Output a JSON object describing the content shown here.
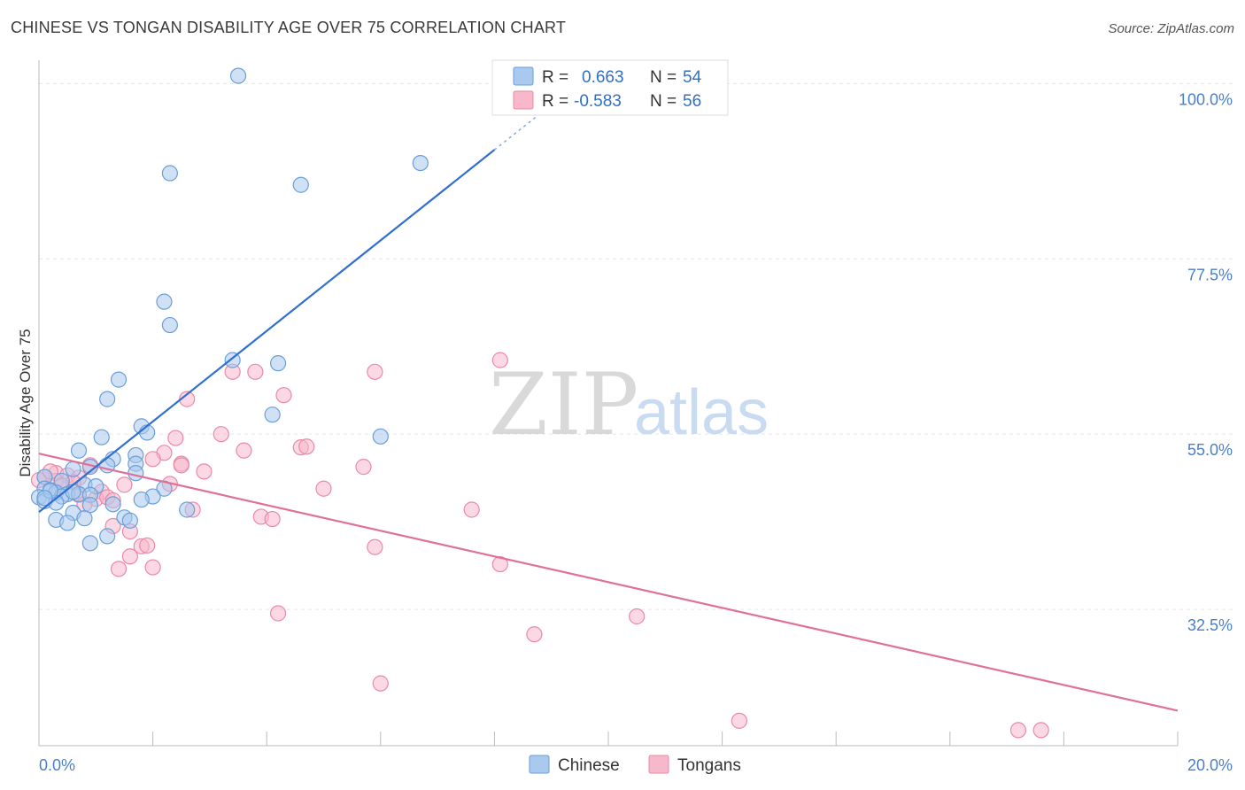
{
  "title": "CHINESE VS TONGAN DISABILITY AGE OVER 75 CORRELATION CHART",
  "source": "Source: ZipAtlas.com",
  "watermark": {
    "part1": "ZIP",
    "part2": "atlas"
  },
  "legend_top": [
    {
      "r_label": "R =",
      "r_value": "0.663",
      "n_label": "N =",
      "n_value": "54"
    },
    {
      "r_label": "R =",
      "r_value": "-0.583",
      "n_label": "N =",
      "n_value": "56"
    }
  ],
  "legend_bottom": [
    "Chinese",
    "Tongans"
  ],
  "colors": {
    "chinese_fill": "#a9c9ee",
    "chinese_stroke": "#6a9fd8",
    "chinese_line": "#2f6fd0",
    "tongan_fill": "#f7b8cc",
    "tongan_stroke": "#e98aa8",
    "tongan_line": "#e0709a",
    "tick_text": "#4a7fc8",
    "grid": "#e6e6e6"
  },
  "chart_data": {
    "type": "scatter",
    "title": "CHINESE VS TONGAN DISABILITY AGE OVER 75 CORRELATION CHART",
    "xlabel": "",
    "ylabel": "Disability Age Over 75",
    "xlim": [
      0,
      20
    ],
    "ylim": [
      15,
      103
    ],
    "x_tick_labels": [
      "0.0%",
      "20.0%"
    ],
    "y_ticks": [
      32.5,
      55.0,
      77.5,
      100.0
    ],
    "y_tick_labels": [
      "32.5%",
      "55.0%",
      "77.5%",
      "100.0%"
    ],
    "grid": true,
    "legend_position": "top-center",
    "series": [
      {
        "name": "Chinese",
        "r": 0.663,
        "n": 54,
        "trend": {
          "x": [
            0.0,
            8.0
          ],
          "y": [
            45.0,
            91.5
          ]
        },
        "trend_dashed": {
          "x": [
            8.0,
            8.9
          ],
          "y": [
            91.5,
            96.7
          ]
        },
        "points": [
          [
            3.5,
            101.0
          ],
          [
            2.3,
            88.5
          ],
          [
            4.6,
            87.0
          ],
          [
            6.7,
            89.8
          ],
          [
            2.2,
            72.0
          ],
          [
            2.3,
            69.0
          ],
          [
            3.4,
            64.5
          ],
          [
            4.2,
            64.1
          ],
          [
            1.4,
            62.0
          ],
          [
            1.2,
            59.5
          ],
          [
            4.1,
            57.5
          ],
          [
            6.0,
            54.7
          ],
          [
            1.8,
            56.0
          ],
          [
            1.9,
            55.2
          ],
          [
            1.1,
            54.6
          ],
          [
            0.7,
            52.9
          ],
          [
            1.7,
            52.3
          ],
          [
            1.7,
            51.2
          ],
          [
            1.3,
            51.8
          ],
          [
            1.2,
            51.0
          ],
          [
            0.6,
            50.5
          ],
          [
            0.9,
            50.8
          ],
          [
            1.7,
            50.0
          ],
          [
            0.1,
            49.5
          ],
          [
            0.4,
            49.0
          ],
          [
            0.8,
            48.5
          ],
          [
            1.0,
            48.3
          ],
          [
            2.2,
            48.0
          ],
          [
            0.1,
            48.0
          ],
          [
            0.2,
            47.8
          ],
          [
            0.3,
            47.5
          ],
          [
            0.5,
            47.3
          ],
          [
            0.7,
            47.3
          ],
          [
            0.0,
            46.9
          ],
          [
            0.4,
            47.0
          ],
          [
            0.9,
            47.2
          ],
          [
            2.0,
            47.0
          ],
          [
            1.8,
            46.6
          ],
          [
            0.1,
            46.4
          ],
          [
            0.3,
            46.2
          ],
          [
            0.9,
            45.9
          ],
          [
            1.3,
            46.0
          ],
          [
            0.6,
            44.9
          ],
          [
            2.6,
            45.3
          ],
          [
            1.5,
            44.3
          ],
          [
            0.3,
            44.0
          ],
          [
            1.6,
            43.9
          ],
          [
            0.8,
            44.2
          ],
          [
            0.5,
            43.6
          ],
          [
            1.2,
            41.9
          ],
          [
            0.9,
            41.0
          ],
          [
            0.2,
            47.7
          ],
          [
            0.6,
            47.6
          ],
          [
            0.1,
            46.8
          ]
        ]
      },
      {
        "name": "Tongans",
        "r": -0.583,
        "n": 56,
        "trend": {
          "x": [
            0.0,
            20.0
          ],
          "y": [
            52.5,
            19.5
          ]
        },
        "points": [
          [
            8.1,
            64.5
          ],
          [
            3.4,
            63.0
          ],
          [
            3.8,
            63.0
          ],
          [
            5.9,
            63.0
          ],
          [
            4.3,
            60.0
          ],
          [
            2.6,
            59.5
          ],
          [
            3.2,
            55.0
          ],
          [
            2.4,
            54.5
          ],
          [
            4.6,
            53.3
          ],
          [
            4.7,
            53.4
          ],
          [
            3.6,
            52.9
          ],
          [
            2.2,
            52.6
          ],
          [
            2.0,
            51.8
          ],
          [
            2.5,
            51.2
          ],
          [
            2.5,
            51.0
          ],
          [
            0.9,
            51.0
          ],
          [
            5.7,
            50.8
          ],
          [
            2.9,
            50.2
          ],
          [
            0.3,
            50.0
          ],
          [
            0.5,
            49.7
          ],
          [
            0.1,
            49.5
          ],
          [
            0.7,
            49.4
          ],
          [
            0.3,
            49.0
          ],
          [
            0.0,
            49.1
          ],
          [
            1.5,
            48.5
          ],
          [
            2.3,
            48.6
          ],
          [
            5.0,
            48.0
          ],
          [
            1.1,
            47.6
          ],
          [
            0.7,
            47.2
          ],
          [
            1.0,
            46.7
          ],
          [
            1.2,
            46.9
          ],
          [
            0.8,
            46.0
          ],
          [
            2.7,
            45.3
          ],
          [
            7.6,
            45.3
          ],
          [
            3.9,
            44.4
          ],
          [
            4.1,
            44.1
          ],
          [
            1.3,
            43.2
          ],
          [
            1.6,
            42.5
          ],
          [
            1.8,
            40.6
          ],
          [
            1.9,
            40.7
          ],
          [
            5.9,
            40.5
          ],
          [
            1.6,
            39.3
          ],
          [
            8.1,
            38.3
          ],
          [
            1.4,
            37.7
          ],
          [
            2.0,
            37.9
          ],
          [
            4.2,
            32.0
          ],
          [
            10.5,
            31.6
          ],
          [
            8.7,
            29.3
          ],
          [
            6.0,
            23.0
          ],
          [
            12.3,
            18.2
          ],
          [
            17.2,
            17.0
          ],
          [
            17.6,
            17.0
          ],
          [
            0.2,
            50.2
          ],
          [
            0.6,
            48.8
          ],
          [
            1.3,
            46.5
          ],
          [
            0.4,
            48.4
          ]
        ]
      }
    ]
  }
}
